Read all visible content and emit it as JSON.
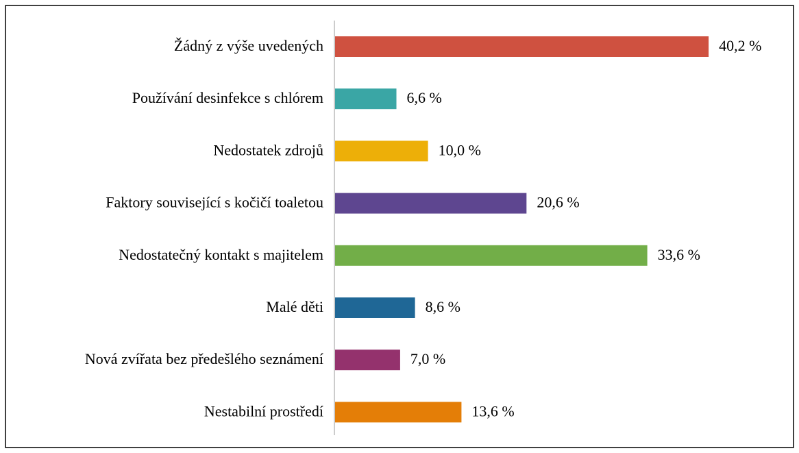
{
  "chart_data": {
    "type": "hbar",
    "categories": [
      "Žádný z výše uvedených",
      "Používání desinfekce s chlórem",
      "Nedostatek zdrojů",
      "Faktory související s kočičí toaletou",
      "Nedostatečný kontakt s majitelem",
      "Malé děti",
      "Nová zvířata bez předešlého seznámení",
      "Nestabilní prostředí"
    ],
    "values": [
      40.2,
      6.6,
      10.0,
      20.6,
      33.6,
      8.6,
      7.0,
      13.6
    ],
    "value_labels": [
      "40,2 %",
      "6,6 %",
      "10,0 %",
      "20,6 %",
      "33,6 %",
      "8,6 %",
      "7,0 %",
      "13,6 %"
    ],
    "colors": [
      "#cf5140",
      "#3aa6a5",
      "#edaf08",
      "#5e4690",
      "#72ae48",
      "#1f6796",
      "#94326d",
      "#e47e07"
    ]
  }
}
